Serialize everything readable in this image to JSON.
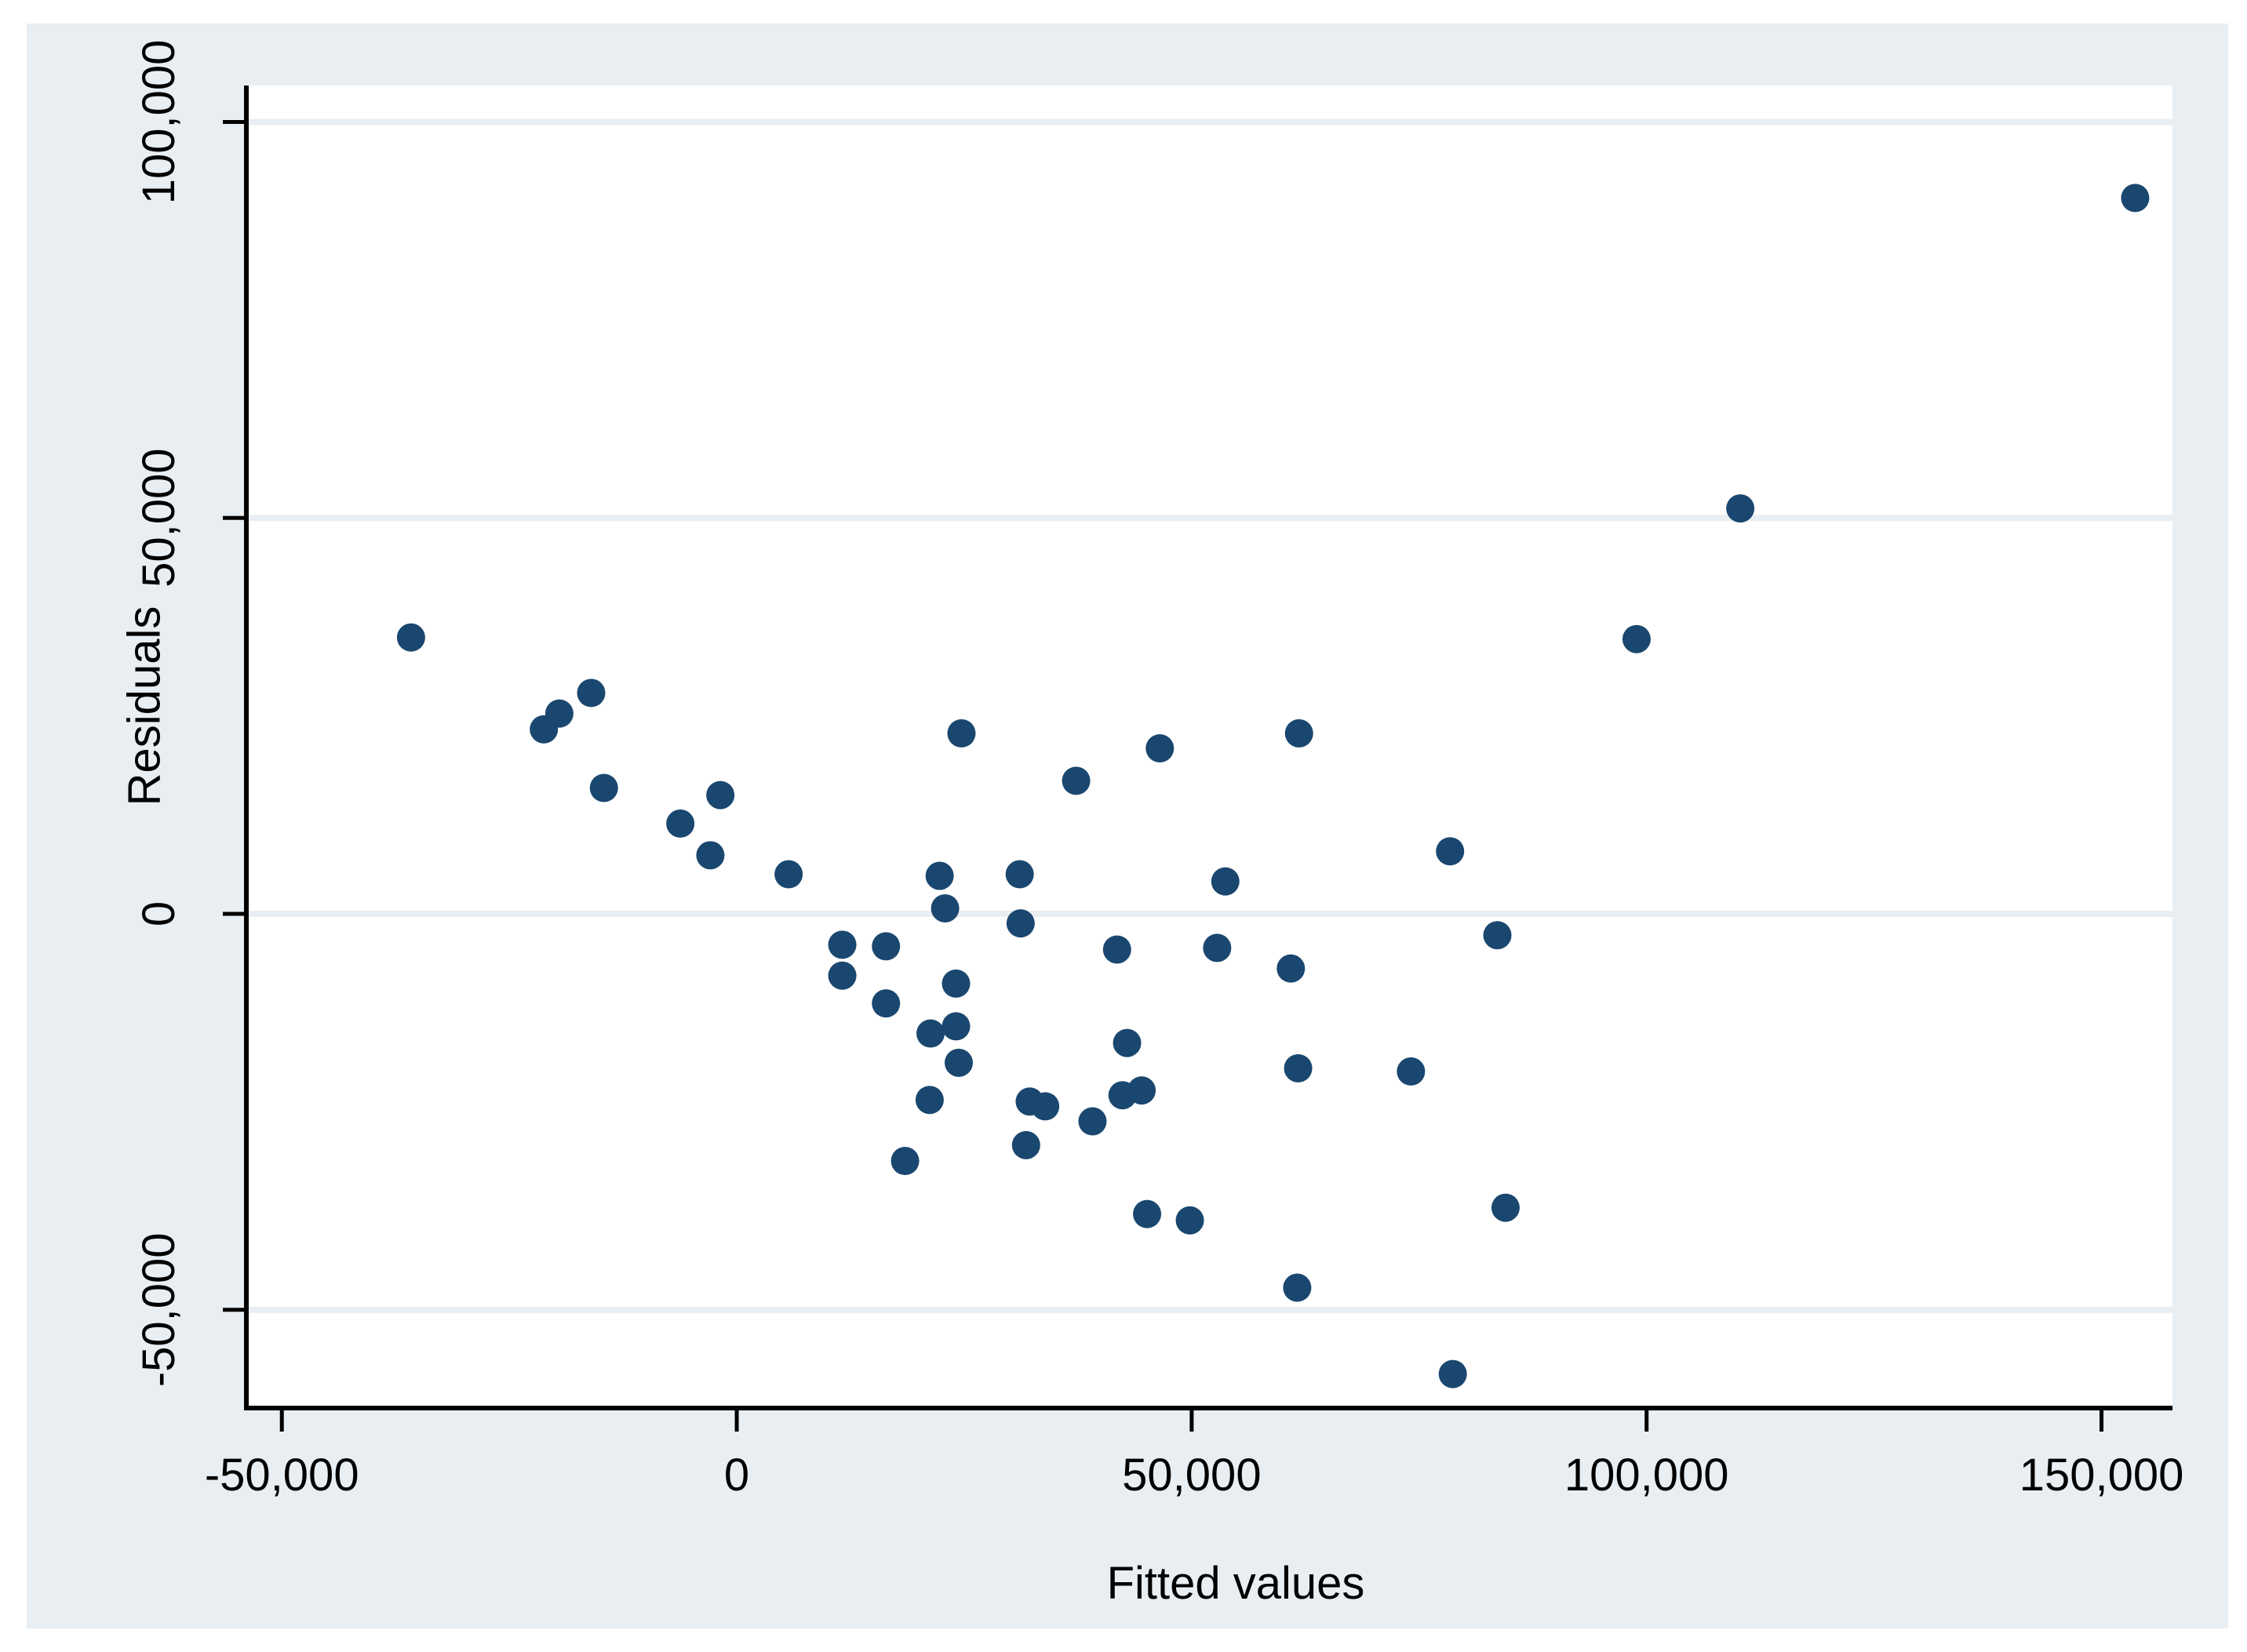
{
  "chart_data": {
    "type": "scatter",
    "title": "",
    "xlabel": "Fitted values",
    "ylabel": "Residuals",
    "xlim": [
      -53900,
      157800
    ],
    "ylim": [
      -62400,
      104600
    ],
    "x_ticks": [
      -50000,
      0,
      50000,
      100000,
      150000
    ],
    "x_tick_labels": [
      "-50,000",
      "0",
      "50,000",
      "100,000",
      "150,000"
    ],
    "y_ticks": [
      -50000,
      0,
      50000,
      100000
    ],
    "y_tick_labels": [
      "-50,000",
      "0",
      "50,000",
      "100,000"
    ],
    "grid": "horizontal gridlines at y ticks, drawn in graph-region color",
    "legend": "none",
    "marker": {
      "shape": "circle",
      "radius_px": 18
    },
    "points": [
      [
        -35800,
        34900
      ],
      [
        -21200,
        23300
      ],
      [
        -19500,
        25300
      ],
      [
        -16000,
        27900
      ],
      [
        -14600,
        15900
      ],
      [
        -6200,
        11400
      ],
      [
        -2900,
        7400
      ],
      [
        -1800,
        15000
      ],
      [
        5700,
        5000
      ],
      [
        11600,
        -3900
      ],
      [
        11600,
        -7800
      ],
      [
        16400,
        -4100
      ],
      [
        16400,
        -11300
      ],
      [
        22300,
        4800
      ],
      [
        22900,
        700
      ],
      [
        24100,
        -8800
      ],
      [
        24700,
        22800
      ],
      [
        31100,
        5000
      ],
      [
        31200,
        -1200
      ],
      [
        37300,
        16800
      ],
      [
        41800,
        -4500
      ],
      [
        46500,
        20900
      ],
      [
        21300,
        -15100
      ],
      [
        24100,
        -14200
      ],
      [
        24400,
        -18800
      ],
      [
        21200,
        -23500
      ],
      [
        32200,
        -23700
      ],
      [
        33900,
        -24300
      ],
      [
        42900,
        -16300
      ],
      [
        44500,
        -22300
      ],
      [
        42400,
        -22900
      ],
      [
        39100,
        -26200
      ],
      [
        31800,
        -29200
      ],
      [
        18500,
        -31200
      ],
      [
        45100,
        -37900
      ],
      [
        49800,
        -38700
      ],
      [
        52800,
        -4300
      ],
      [
        53700,
        4100
      ],
      [
        60900,
        -6900
      ],
      [
        61800,
        22800
      ],
      [
        78400,
        7900
      ],
      [
        83600,
        -2700
      ],
      [
        61700,
        -19500
      ],
      [
        74100,
        -19900
      ],
      [
        84500,
        -37100
      ],
      [
        61600,
        -47200
      ],
      [
        78700,
        -58100
      ],
      [
        98900,
        34700
      ],
      [
        110300,
        51200
      ],
      [
        153700,
        90400
      ]
    ]
  },
  "colors": {
    "page_background": "#ffffff",
    "graph_region_background": "#e8eef2",
    "plot_region_background": "#ffffff",
    "gridline": "#e8eef2",
    "axis_line": "#000000",
    "tick_label": "#000000",
    "marker_fill": "#1a476f"
  }
}
